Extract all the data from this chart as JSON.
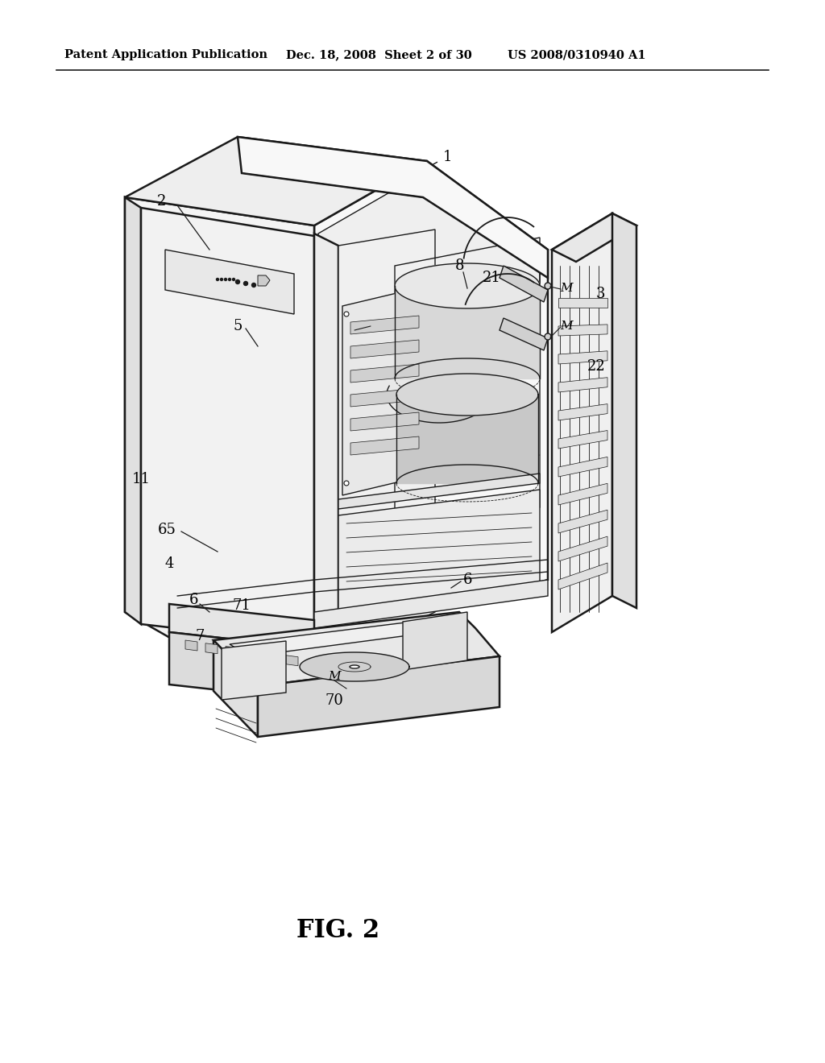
{
  "bg_color": "#ffffff",
  "header_left": "Patent Application Publication",
  "header_center": "Dec. 18, 2008  Sheet 2 of 30",
  "header_right": "US 2008/0310940 A1",
  "figure_label": "FIG. 2",
  "lw_main": 1.8,
  "lw_detail": 1.0,
  "lw_thin": 0.6,
  "line_color": "#1a1a1a"
}
